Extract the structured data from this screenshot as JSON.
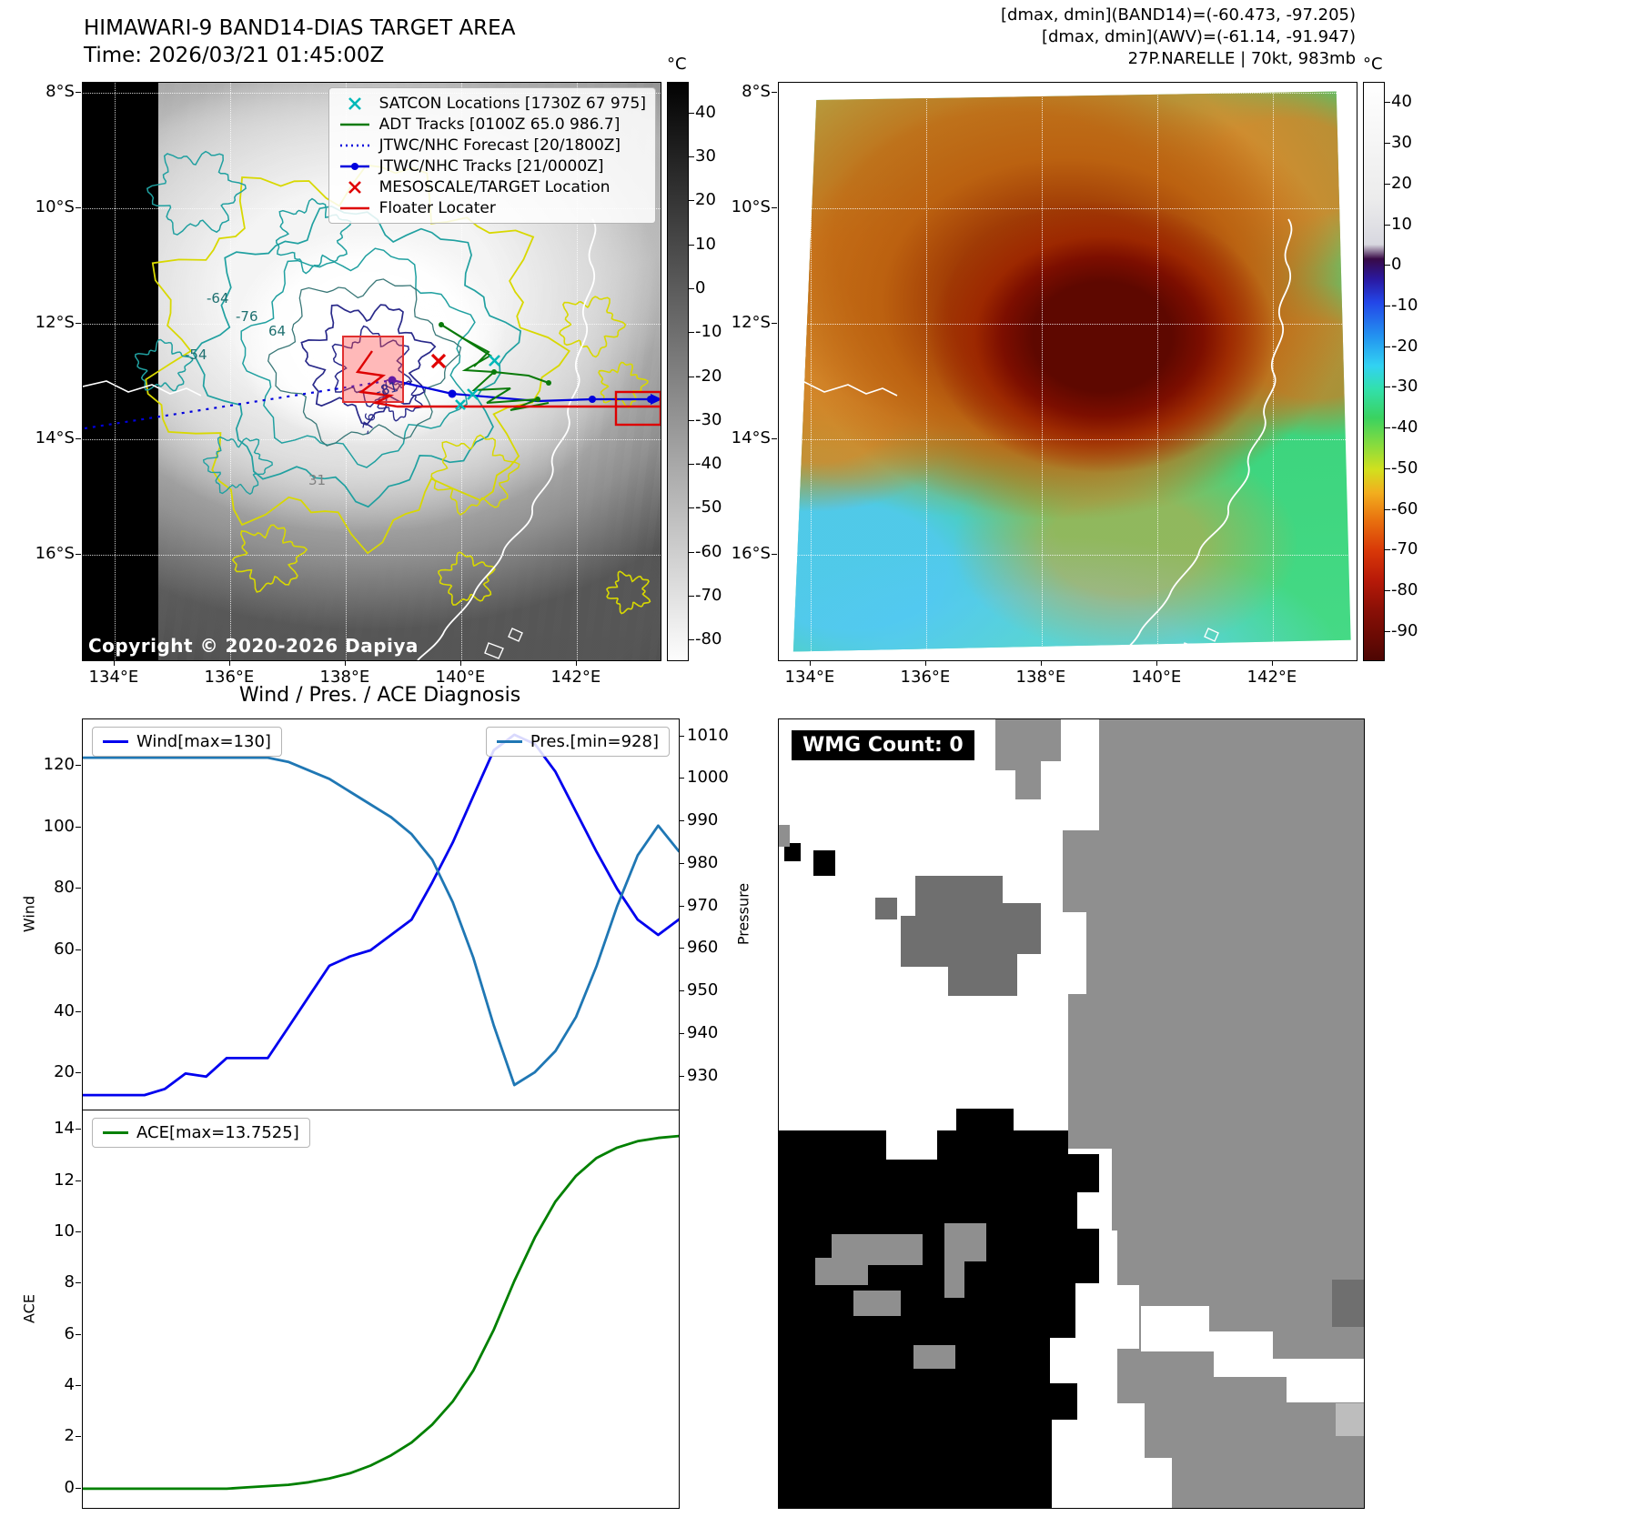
{
  "band14_panel": {
    "title": "HIMAWARI-9 BAND14-DIAS TARGET AREA",
    "subtitle": "Time: 2026/03/21 01:45:00Z",
    "copyright": "Copyright © 2020-2026 Dapiya",
    "legend": [
      {
        "label": "SATCON Locations [1730Z 67 975]",
        "marker": "x",
        "color": "#00b8b8"
      },
      {
        "label": "ADT Tracks [0100Z 65.0 986.7]",
        "marker": "line",
        "color": "#0a7a0a"
      },
      {
        "label": "JTWC/NHC Forecast [20/1800Z]",
        "marker": "dotted-line",
        "color": "#0000dd"
      },
      {
        "label": "JTWC/NHC Tracks [21/0000Z]",
        "marker": "line-dot",
        "color": "#0000dd"
      },
      {
        "label": "MESOSCALE/TARGET Location",
        "marker": "x",
        "color": "#e00000"
      },
      {
        "label": "Floater Locater",
        "marker": "line",
        "color": "#dd0000"
      }
    ],
    "xticks": [
      "134°E",
      "136°E",
      "138°E",
      "140°E",
      "142°E"
    ],
    "yticks": [
      "8°S",
      "10°S",
      "12°S",
      "14°S",
      "16°S"
    ],
    "contour_labels": [
      "-76",
      "64",
      "-54",
      "-64",
      "31",
      "-76",
      "-81"
    ],
    "colorbar": {
      "unit": "°C",
      "ticks": [
        40,
        30,
        20,
        10,
        0,
        -10,
        -20,
        -30,
        -40,
        -50,
        -60,
        -70,
        -80
      ]
    }
  },
  "awv_panel": {
    "header_lines": [
      "[dmax, dmin](BAND14)=(-60.473, -97.205)",
      "[dmax, dmin](AWV)=(-61.14, -91.947)",
      "27P.NARELLE | 70kt, 983mb"
    ],
    "xticks": [
      "134°E",
      "136°E",
      "138°E",
      "140°E",
      "142°E"
    ],
    "yticks": [
      "8°S",
      "10°S",
      "12°S",
      "14°S",
      "16°S"
    ],
    "colorbar": {
      "unit": "°C",
      "ticks": [
        40,
        30,
        20,
        10,
        0,
        -10,
        -20,
        -30,
        -40,
        -50,
        -60,
        -70,
        -80,
        -90
      ]
    }
  },
  "diagnosis": {
    "title": "Wind / Pres. / ACE Diagnosis"
  },
  "wmg_panel": {
    "label": "WMG Count: 0"
  },
  "chart_data": [
    {
      "type": "line",
      "title": "Wind / Pres. / ACE Diagnosis",
      "xticks": [],
      "series": [
        {
          "name": "Wind[max=130]",
          "axis": "left",
          "color": "#0000ee",
          "values": [
            13,
            13,
            13,
            13,
            15,
            20,
            19,
            25,
            25,
            25,
            35,
            45,
            55,
            58,
            60,
            65,
            70,
            82,
            95,
            110,
            125,
            130,
            127,
            118,
            105,
            92,
            80,
            70,
            65,
            70
          ]
        },
        {
          "name": "Pres.[min=928]",
          "axis": "right",
          "color": "#1f77b4",
          "values": [
            1005,
            1005,
            1005,
            1005,
            1005,
            1005,
            1005,
            1005,
            1005,
            1005,
            1004,
            1002,
            1000,
            997,
            994,
            991,
            987,
            981,
            971,
            958,
            942,
            928,
            931,
            936,
            944,
            956,
            970,
            982,
            989,
            983
          ]
        }
      ],
      "ylabel_left": "Wind",
      "yticks_left": [
        20,
        40,
        60,
        80,
        100,
        120
      ],
      "ylim_left": [
        8,
        135
      ],
      "ylabel_right": "Pressure",
      "yticks_right": [
        930,
        940,
        950,
        960,
        970,
        980,
        990,
        1000,
        1010
      ],
      "ylim_right": [
        922,
        1014
      ],
      "legend_position": "upper-left-and-upper-right",
      "grid": false
    },
    {
      "type": "line",
      "xticks": [],
      "series": [
        {
          "name": "ACE[max=13.7525]",
          "axis": "left",
          "color": "#008000",
          "values": [
            0,
            0,
            0,
            0,
            0,
            0,
            0,
            0,
            0.05,
            0.1,
            0.15,
            0.25,
            0.4,
            0.6,
            0.9,
            1.3,
            1.8,
            2.5,
            3.4,
            4.6,
            6.2,
            8.1,
            9.8,
            11.2,
            12.2,
            12.9,
            13.3,
            13.55,
            13.68,
            13.7525
          ]
        }
      ],
      "ylabel_left": "ACE",
      "yticks_left": [
        0,
        2,
        4,
        6,
        8,
        10,
        12,
        14
      ],
      "ylim_left": [
        -0.75,
        14.75
      ],
      "legend_position": "upper-left",
      "grid": false
    }
  ]
}
